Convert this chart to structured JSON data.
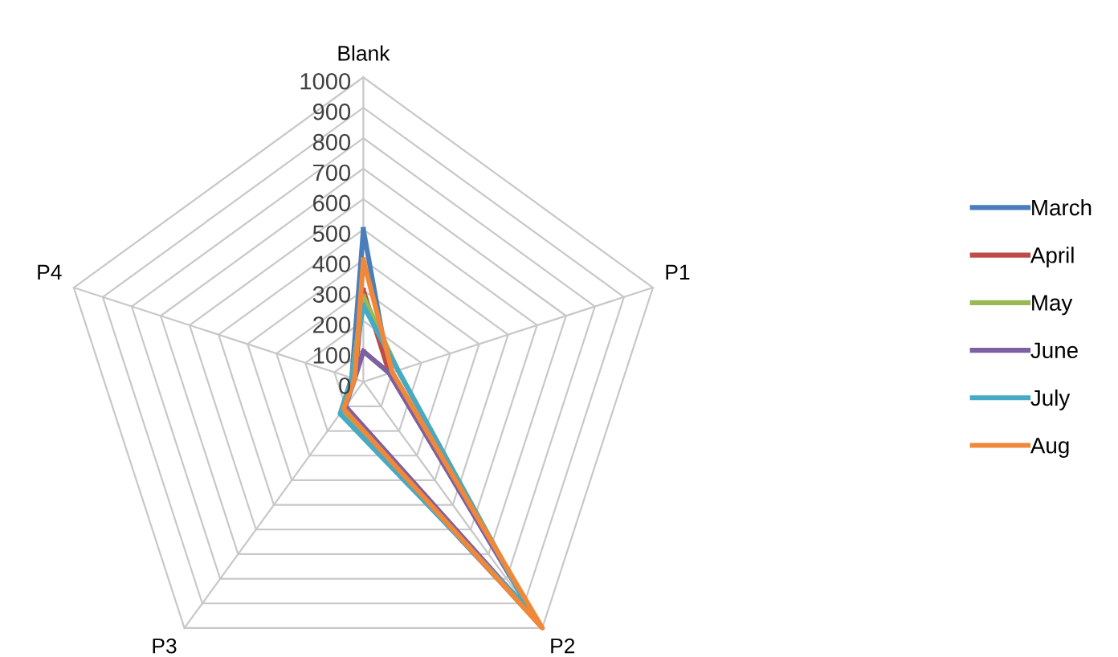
{
  "chart_data": {
    "type": "radar",
    "categories": [
      "Blank",
      "P1",
      "P2",
      "P3",
      "P4"
    ],
    "ylim": [
      0,
      1000
    ],
    "yticks": [
      0,
      100,
      200,
      300,
      400,
      500,
      600,
      700,
      800,
      900,
      1000
    ],
    "grid": true,
    "legend": "right",
    "line_style": "solid",
    "marker": "none",
    "series": [
      {
        "name": "March",
        "color": "#4a7ebb",
        "values": [
          500,
          90,
          980,
          120,
          40
        ]
      },
      {
        "name": "April",
        "color": "#be4b48",
        "values": [
          300,
          90,
          990,
          110,
          30
        ]
      },
      {
        "name": "May",
        "color": "#98b954",
        "values": [
          280,
          120,
          940,
          120,
          40
        ]
      },
      {
        "name": "June",
        "color": "#7d60a0",
        "values": [
          100,
          90,
          960,
          100,
          30
        ]
      },
      {
        "name": "July",
        "color": "#46aac5",
        "values": [
          250,
          120,
          930,
          130,
          40
        ]
      },
      {
        "name": "Aug",
        "color": "#f0883a",
        "values": [
          400,
          100,
          1000,
          110,
          30
        ]
      }
    ]
  }
}
